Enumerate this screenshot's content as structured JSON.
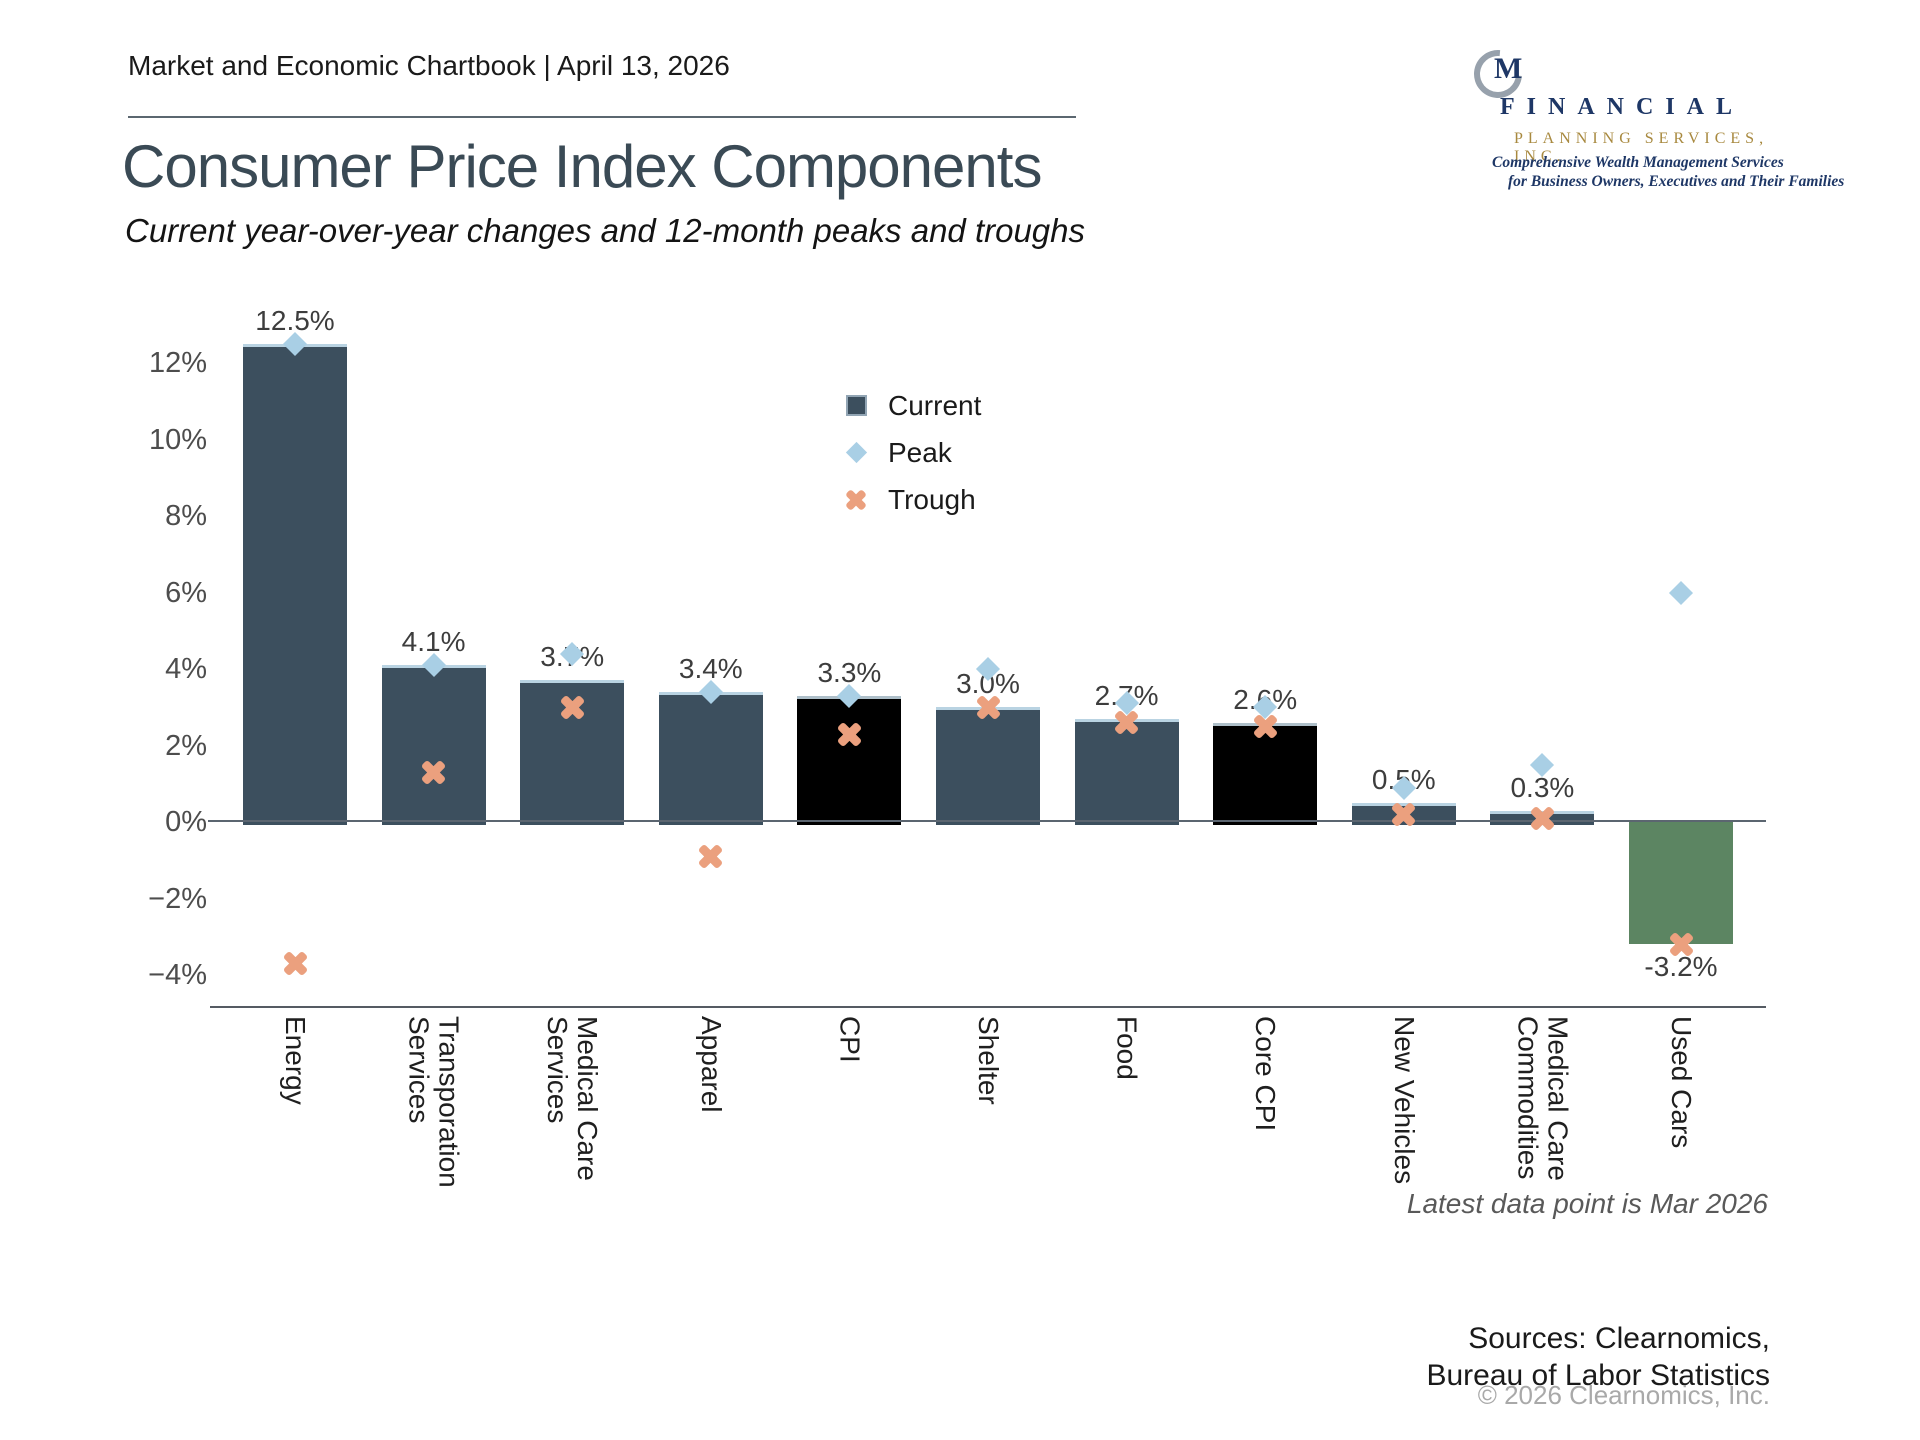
{
  "header": {
    "kicker": "Market and Economic Chartbook | April 13, 2026",
    "title": "Consumer Price Index Components",
    "subtitle": "Current year-over-year changes and 12-month peaks and troughs"
  },
  "logo": {
    "monogram": "M",
    "name_line1": "FINANCIAL",
    "name_line2": "PLANNING SERVICES, INC.",
    "tagline_line1": "Comprehensive Wealth Management Services",
    "tagline_line2": "for Business Owners, Executives and Their Families"
  },
  "legend": {
    "current": "Current",
    "peak": "Peak",
    "trough": "Trough"
  },
  "footer": {
    "latest_note": "Latest data point is Mar 2026",
    "sources_line1": "Sources: Clearnomics,",
    "sources_line2": "Bureau of Labor Statistics",
    "copyright": "© 2026 Clearnomics, Inc."
  },
  "colors": {
    "bar": "#3c4f5e",
    "bar_highlight": "#000000",
    "bar_negative": "#5c8562",
    "peak_marker": "#a9cfe5",
    "trough_marker": "#eba07e"
  },
  "chart_data": {
    "type": "bar",
    "title": "Consumer Price Index Components",
    "subtitle": "Current year-over-year changes and 12-month peaks and troughs",
    "xlabel": "",
    "ylabel": "",
    "ylim": [
      -4.9,
      14.4
    ],
    "grid": false,
    "legend_entries": [
      "Current",
      "Peak",
      "Trough"
    ],
    "legend_position": "inside-top-center",
    "ytick_values": [
      12,
      10,
      8,
      6,
      4,
      2,
      0,
      -2,
      -4
    ],
    "ytick_labels": [
      "12%",
      "10%",
      "8%",
      "6%",
      "4%",
      "2%",
      "0%",
      "−2%",
      "−4%"
    ],
    "categories": [
      "Energy",
      "Transporation Services",
      "Medical Care Services",
      "Apparel",
      "CPI",
      "Shelter",
      "Food",
      "Core CPI",
      "New Vehicles",
      "Medical Care Commodities",
      "Used Cars"
    ],
    "category_labels": [
      "Energy",
      "Transporation\nServices",
      "Medical Care\nServices",
      "Apparel",
      "CPI",
      "Shelter",
      "Food",
      "Core CPI",
      "New Vehicles",
      "Medical Care\nCommodities",
      "Used Cars"
    ],
    "bar_types": [
      "normal",
      "normal",
      "normal",
      "normal",
      "highlight",
      "normal",
      "normal",
      "highlight",
      "normal",
      "normal",
      "negative"
    ],
    "value_labels": [
      "12.5%",
      "4.1%",
      "3.7%",
      "3.4%",
      "3.3%",
      "3.0%",
      "2.7%",
      "2.6%",
      "0.5%",
      "0.3%",
      "-3.2%"
    ],
    "series": [
      {
        "name": "Current",
        "values": [
          12.5,
          4.1,
          3.7,
          3.4,
          3.3,
          3.0,
          2.7,
          2.6,
          0.5,
          0.3,
          -3.2
        ]
      },
      {
        "name": "Peak",
        "values": [
          12.5,
          4.1,
          4.4,
          3.4,
          3.3,
          4.0,
          3.1,
          3.0,
          0.9,
          1.5,
          6.0
        ]
      },
      {
        "name": "Trough",
        "values": [
          -3.7,
          1.3,
          3.0,
          -0.9,
          2.3,
          3.0,
          2.6,
          2.5,
          0.2,
          0.1,
          -3.2
        ]
      }
    ]
  }
}
